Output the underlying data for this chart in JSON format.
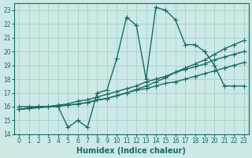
{
  "xlabel": "Humidex (Indice chaleur)",
  "ylabel": "",
  "bg_color": "#cce9e5",
  "grid_color": "#a8d5cf",
  "line_color": "#1a6b5e",
  "xlim": [
    -0.5,
    23.5
  ],
  "ylim": [
    14,
    23.5
  ],
  "xticks": [
    0,
    1,
    2,
    3,
    4,
    5,
    6,
    7,
    8,
    9,
    10,
    11,
    12,
    13,
    14,
    15,
    16,
    17,
    18,
    19,
    20,
    21,
    22,
    23
  ],
  "yticks": [
    14,
    15,
    16,
    17,
    18,
    19,
    20,
    21,
    22,
    23
  ],
  "main_x": [
    0,
    1,
    2,
    3,
    4,
    5,
    6,
    7,
    8,
    9,
    10,
    11,
    12,
    13,
    14,
    15,
    16,
    17,
    18,
    19,
    20,
    21,
    22,
    23
  ],
  "main_y": [
    16.0,
    16.0,
    16.0,
    16.0,
    16.0,
    14.5,
    15.0,
    14.5,
    17.0,
    17.2,
    19.5,
    22.5,
    21.9,
    18.0,
    23.2,
    23.0,
    22.3,
    20.5,
    20.5,
    20.0,
    19.0,
    17.5,
    17.5,
    17.5
  ],
  "line2_x": [
    0,
    1,
    2,
    3,
    4,
    5,
    6,
    7,
    8,
    9,
    10,
    11,
    12,
    13,
    14,
    15,
    16,
    17,
    18,
    19,
    20,
    21,
    22,
    23
  ],
  "line2_y": [
    15.8,
    15.9,
    16.0,
    16.0,
    16.1,
    16.1,
    16.2,
    16.3,
    16.5,
    16.6,
    16.8,
    17.0,
    17.2,
    17.3,
    17.5,
    17.7,
    17.8,
    18.0,
    18.2,
    18.4,
    18.6,
    18.8,
    19.0,
    19.2
  ],
  "line3_x": [
    0,
    1,
    2,
    3,
    4,
    5,
    6,
    7,
    8,
    9,
    10,
    11,
    12,
    13,
    14,
    15,
    16,
    17,
    18,
    19,
    20,
    21,
    22,
    23
  ],
  "line3_y": [
    15.8,
    15.9,
    16.0,
    16.0,
    16.1,
    16.2,
    16.4,
    16.5,
    16.7,
    16.9,
    17.1,
    17.3,
    17.5,
    17.8,
    18.0,
    18.2,
    18.5,
    18.7,
    18.9,
    19.1,
    19.4,
    19.6,
    19.8,
    20.0
  ],
  "line4_x": [
    0,
    5,
    7,
    9,
    10,
    11,
    13,
    14,
    15,
    16,
    17,
    18,
    19,
    20,
    21,
    22,
    23
  ],
  "line4_y": [
    15.8,
    16.1,
    16.3,
    16.6,
    16.8,
    17.0,
    17.5,
    17.8,
    18.1,
    18.5,
    18.8,
    19.1,
    19.4,
    19.8,
    20.2,
    20.5,
    20.8
  ],
  "marker": "+",
  "markersize": 4,
  "linewidth": 1.0
}
